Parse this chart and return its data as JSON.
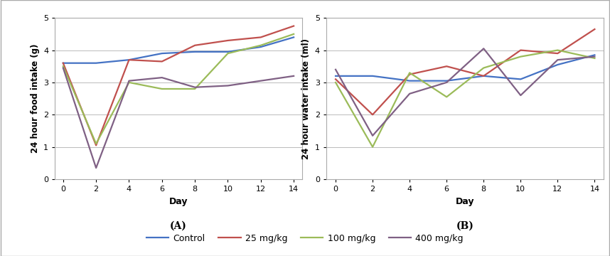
{
  "days": [
    0,
    2,
    4,
    6,
    8,
    10,
    12,
    14
  ],
  "food": {
    "control": [
      3.6,
      3.6,
      3.7,
      3.9,
      3.95,
      3.95,
      4.1,
      4.4
    ],
    "mg25": [
      3.6,
      1.05,
      3.7,
      3.65,
      4.15,
      4.3,
      4.4,
      4.75
    ],
    "mg100": [
      3.5,
      1.1,
      3.0,
      2.8,
      2.8,
      3.9,
      4.15,
      4.5
    ],
    "mg400": [
      3.45,
      0.35,
      3.05,
      3.15,
      2.85,
      2.9,
      3.05,
      3.2
    ]
  },
  "water": {
    "control": [
      3.2,
      3.2,
      3.05,
      3.05,
      3.2,
      3.1,
      3.55,
      3.85
    ],
    "mg25": [
      3.1,
      2.0,
      3.25,
      3.5,
      3.2,
      4.0,
      3.9,
      4.65
    ],
    "mg100": [
      3.0,
      1.0,
      3.3,
      2.55,
      3.45,
      3.8,
      4.0,
      3.75
    ],
    "mg400": [
      3.4,
      1.35,
      2.65,
      3.0,
      4.05,
      2.6,
      3.7,
      3.8
    ]
  },
  "colors": {
    "control": "#4472C4",
    "mg25": "#C0504D",
    "mg100": "#9BBB59",
    "mg400": "#7F6084"
  },
  "legend_labels": [
    "Control",
    "25 mg/kg",
    "100 mg/kg",
    "400 mg/kg"
  ],
  "ylabel_food": "24 hour food intake (g)",
  "ylabel_water": "24 hour water intake (ml)",
  "xlabel": "Day",
  "label_A": "(A)",
  "label_B": "(B)",
  "ylim": [
    0,
    5
  ],
  "yticks": [
    0,
    1,
    2,
    3,
    4,
    5
  ],
  "xticks": [
    0,
    2,
    4,
    6,
    8,
    10,
    12,
    14
  ],
  "background_color": "#FFFFFF",
  "line_width": 1.6
}
